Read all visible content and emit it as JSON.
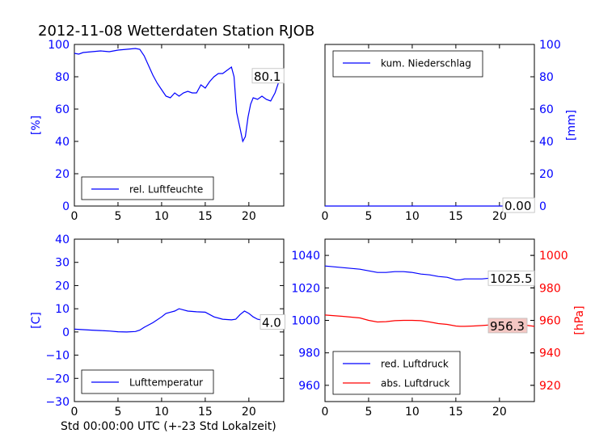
{
  "title": "2012-11-08 Wetterdaten Station RJOB",
  "xlabel": "Std 00:00:00 UTC (+-23 Std Lokalzeit)",
  "colors": {
    "blue": "#0000ff",
    "red": "#ff0000",
    "highlight": "#f4c7c3"
  },
  "chart_data": [
    {
      "type": "line",
      "id": "humidity",
      "ylabel": "[%]",
      "xlim": [
        0,
        24
      ],
      "ylim": [
        0,
        100
      ],
      "xticks": [
        "0",
        "5",
        "10",
        "15",
        "20"
      ],
      "yticks": [
        "0",
        "20",
        "40",
        "60",
        "80",
        "100"
      ],
      "legend_position": "lower-left",
      "last_value": "80.1",
      "series": [
        {
          "name": "rel. Luftfeuchte",
          "color": "#0000ff",
          "x": [
            0,
            0.5,
            1,
            2,
            3,
            4,
            5,
            6,
            7,
            7.5,
            8,
            8.5,
            9,
            9.5,
            10,
            10.5,
            11,
            11.5,
            12,
            12.5,
            13,
            13.5,
            14,
            14.5,
            15,
            15.5,
            16,
            16.5,
            17,
            17.5,
            18,
            18.3,
            18.6,
            19,
            19.3,
            19.6,
            19.9,
            20.2,
            20.5,
            21,
            21.5,
            22,
            22.5,
            23,
            23.5,
            24
          ],
          "y": [
            94.5,
            94,
            95,
            95.5,
            96,
            95.5,
            96.5,
            97,
            97.5,
            97,
            93,
            87,
            81,
            76,
            72,
            68,
            67,
            70,
            68,
            70,
            71,
            70,
            70,
            75,
            73,
            77,
            80,
            82,
            82,
            84,
            86,
            80,
            58,
            48,
            40,
            43,
            55,
            63,
            67,
            66,
            68,
            66,
            65,
            70,
            78,
            80.1
          ]
        }
      ]
    },
    {
      "type": "line",
      "id": "precipitation",
      "ylabel": "[mm]",
      "xlim": [
        0,
        24
      ],
      "ylim": [
        0,
        100
      ],
      "xticks": [
        "0",
        "5",
        "10",
        "15",
        "20"
      ],
      "yticks": [
        "0",
        "20",
        "40",
        "60",
        "80",
        "100"
      ],
      "legend_position": "upper-left",
      "last_value": "0.00",
      "series": [
        {
          "name": "kum. Niederschlag",
          "color": "#0000ff",
          "x": [
            0,
            24
          ],
          "y": [
            0,
            0
          ]
        }
      ]
    },
    {
      "type": "line",
      "id": "temperature",
      "ylabel": "[C]",
      "xlim": [
        0,
        24
      ],
      "ylim": [
        -30,
        40
      ],
      "xticks": [
        "0",
        "5",
        "10",
        "15",
        "20"
      ],
      "yticks": [
        "−30",
        "−20",
        "−10",
        "0",
        "10",
        "20",
        "30",
        "40"
      ],
      "legend_position": "lower-left",
      "last_value": "4.0",
      "series": [
        {
          "name": "Lufttemperatur",
          "color": "#0000ff",
          "x": [
            0,
            1,
            2,
            3,
            4,
            5,
            6,
            7,
            7.5,
            8,
            9,
            10,
            10.5,
            11,
            11.5,
            12,
            12.5,
            13,
            14,
            15,
            16,
            17,
            18,
            18.5,
            19,
            19.5,
            20,
            20.5,
            21,
            22,
            23,
            24
          ],
          "y": [
            1.2,
            1,
            0.8,
            0.6,
            0.4,
            0.1,
            0,
            0.2,
            0.8,
            2,
            4,
            6.5,
            8,
            8.5,
            9,
            10,
            9.5,
            9,
            8.7,
            8.5,
            6.5,
            5.5,
            5.2,
            5.5,
            7.5,
            9,
            8,
            6.5,
            5.5,
            4.8,
            4.2,
            4.0
          ]
        }
      ]
    },
    {
      "type": "line",
      "id": "pressure",
      "ylabel": "[hPa]",
      "xlim": [
        0,
        24
      ],
      "ylim": [
        950,
        1050
      ],
      "ylim_right": [
        910,
        1010
      ],
      "xticks": [
        "0",
        "5",
        "10",
        "15",
        "20"
      ],
      "yticks": [
        "960",
        "980",
        "1000",
        "1020",
        "1040"
      ],
      "yticks_right": [
        "920",
        "940",
        "960",
        "980",
        "1000"
      ],
      "legend_position": "lower-left",
      "last_values": [
        "1025.5",
        "956.3"
      ],
      "series": [
        {
          "name": "red. Luftdruck",
          "color": "#0000ff",
          "x": [
            0,
            2,
            4,
            5,
            6,
            7,
            8,
            9,
            10,
            11,
            12,
            13,
            14,
            15,
            15.5,
            16,
            17,
            18,
            19,
            20,
            21,
            22,
            23,
            24
          ],
          "y": [
            1033.5,
            1032.5,
            1031.5,
            1030.5,
            1029.5,
            1029.5,
            1030,
            1030,
            1029.5,
            1028.5,
            1028,
            1027,
            1026.5,
            1025,
            1025,
            1025.5,
            1025.5,
            1025.5,
            1026,
            1026.5,
            1026.5,
            1026.5,
            1026,
            1025.5
          ]
        },
        {
          "name": "abs. Luftdruck",
          "color": "#ff0000",
          "axis": "right",
          "x": [
            0,
            2,
            4,
            5,
            6,
            7,
            8,
            9,
            10,
            11,
            12,
            13,
            14,
            15,
            15.5,
            16,
            17,
            18,
            19,
            20,
            21,
            22,
            23,
            24
          ],
          "y": [
            963.3,
            962.5,
            961.5,
            960,
            959,
            959.2,
            959.8,
            960,
            960,
            959.8,
            959,
            958,
            957.5,
            956.5,
            956.3,
            956.3,
            956.5,
            956.8,
            957.2,
            957.8,
            958,
            957.5,
            957,
            956.3
          ]
        }
      ]
    }
  ]
}
